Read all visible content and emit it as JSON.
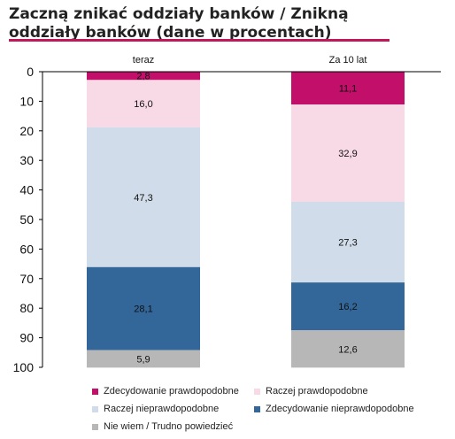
{
  "title": "Zaczną znikać oddziały banków / Znikną oddziały banków (dane w procentach)",
  "colors": {
    "title_rule": "#c2185b",
    "axis": "#000000"
  },
  "chart_data": {
    "type": "bar",
    "stacked": true,
    "orientation": "vertical",
    "y_axis_inverted": true,
    "categories": [
      "teraz",
      "Za 10 lat"
    ],
    "ylim": [
      0,
      100
    ],
    "yticks": [
      0,
      10,
      20,
      30,
      40,
      50,
      60,
      70,
      80,
      90,
      100
    ],
    "xlabel": "",
    "ylabel": "",
    "grid": false,
    "legend_position": "bottom",
    "series": [
      {
        "name": "Zdecydowanie prawdopodobne",
        "color": "#c2106a",
        "values": [
          2.8,
          11.1
        ],
        "labels": [
          "2,8",
          "11,1"
        ]
      },
      {
        "name": "Raczej prawdopodobne",
        "color": "#f8d9e6",
        "values": [
          16.0,
          32.9
        ],
        "labels": [
          "16,0",
          "32,9"
        ]
      },
      {
        "name": "Raczej nieprawdopodobne",
        "color": "#d0dce9",
        "values": [
          47.3,
          27.3
        ],
        "labels": [
          "47,3",
          "27,3"
        ]
      },
      {
        "name": "Zdecydowanie nieprawdopodobne",
        "color": "#336699",
        "values": [
          28.1,
          16.2
        ],
        "labels": [
          "28,1",
          "16,2"
        ]
      },
      {
        "name": "Nie wiem / Trudno powiedzieć",
        "color": "#b7b7b7",
        "values": [
          5.9,
          12.6
        ],
        "labels": [
          "5,9",
          "12,6"
        ]
      }
    ]
  }
}
